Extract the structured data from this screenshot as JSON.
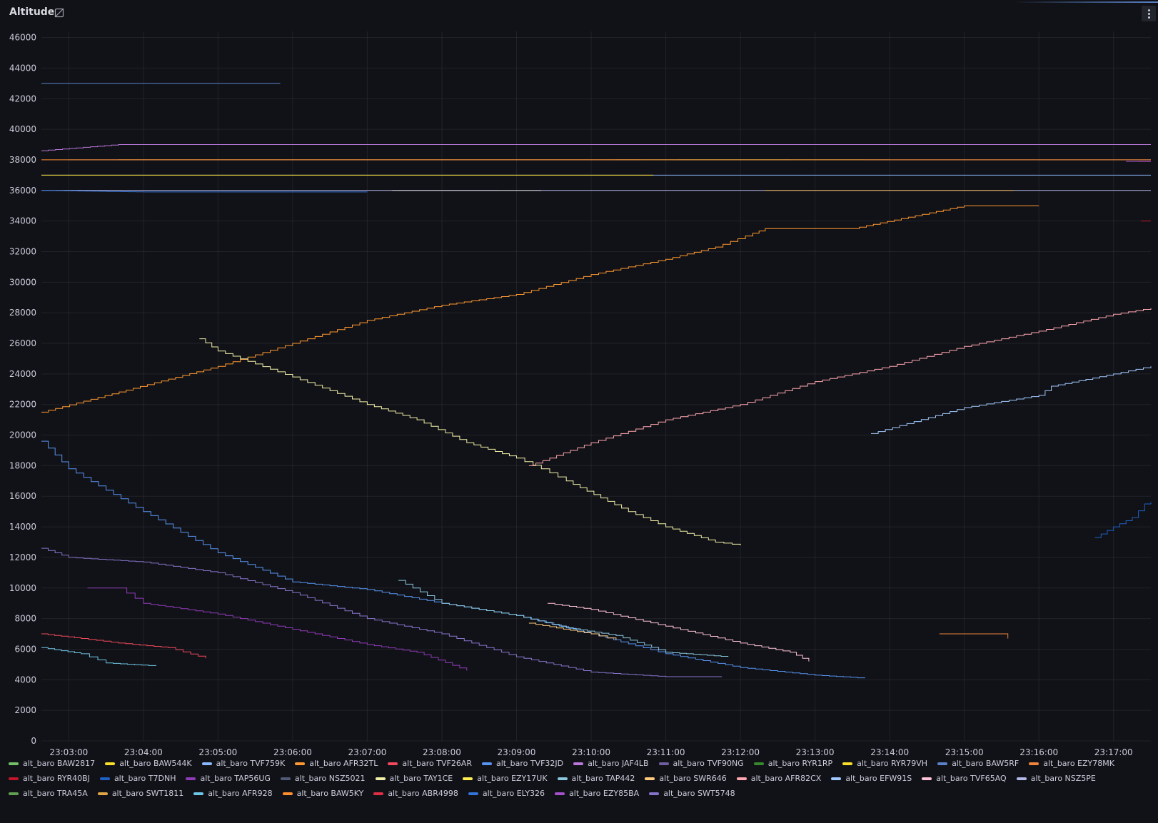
{
  "panel": {
    "title": "Altitude",
    "title_icon": "no-link-icon",
    "menu_icon": "kebab-menu-icon"
  },
  "chart_data": {
    "type": "line",
    "title": "Altitude",
    "ylim": [
      0,
      46000
    ],
    "y_ticks": [
      0,
      2000,
      4000,
      6000,
      8000,
      10000,
      12000,
      14000,
      16000,
      18000,
      20000,
      22000,
      24000,
      26000,
      28000,
      30000,
      32000,
      34000,
      36000,
      38000,
      40000,
      42000,
      44000,
      46000
    ],
    "x_ticks": [
      "23:03:00",
      "23:04:00",
      "23:05:00",
      "23:06:00",
      "23:07:00",
      "23:08:00",
      "23:09:00",
      "23:10:00",
      "23:11:00",
      "23:12:00",
      "23:13:00",
      "23:14:00",
      "23:15:00",
      "23:16:00",
      "23:17:00"
    ],
    "x_range": [
      "23:02:38",
      "23:17:30"
    ],
    "grid": true,
    "legend_placement": "bottom",
    "series": [
      {
        "name": "alt_baro BAW2817",
        "color": "#73bf69",
        "x": [
          "23:10:20",
          "23:13:00",
          "23:14:00"
        ],
        "y": [
          38000,
          38000,
          38000
        ]
      },
      {
        "name": "alt_baro BAW544K",
        "color": "#fade2a",
        "x": [
          "23:03:40",
          "23:04:40",
          "23:10:20",
          "23:10:40"
        ],
        "y": [
          38000,
          38000,
          38000,
          38000
        ]
      },
      {
        "name": "alt_baro TVF759K",
        "color": "#8ab8ff",
        "x": [
          "23:02:38",
          "23:17:30"
        ],
        "y": [
          37000,
          37000
        ]
      },
      {
        "name": "alt_baro AFR32TL",
        "color": "#ff9830",
        "x": [
          "23:02:38",
          "23:05:00",
          "23:06:00",
          "23:07:00",
          "23:08:00",
          "23:09:00",
          "23:10:00",
          "23:11:00",
          "23:11:40",
          "23:12:10",
          "23:12:20",
          "23:13:30",
          "23:15:00",
          "23:16:00"
        ],
        "y": [
          21500,
          24500,
          26000,
          27500,
          28500,
          29200,
          30500,
          31500,
          32300,
          33200,
          33500,
          33500,
          35000,
          35000
        ]
      },
      {
        "name": "alt_baro TVF26AR",
        "color": "#f2495c",
        "x": [
          "23:02:38",
          "23:03:10",
          "23:03:40",
          "23:04:20",
          "23:04:50"
        ],
        "y": [
          7000,
          6700,
          6400,
          6100,
          5400
        ]
      },
      {
        "name": "alt_baro TVF32JD",
        "color": "#5794f2",
        "x": [
          "23:02:38",
          "23:03:00",
          "23:04:00",
          "23:05:00",
          "23:06:00",
          "23:07:00",
          "23:08:00",
          "23:09:00",
          "23:10:00",
          "23:11:00",
          "23:12:00",
          "23:13:00",
          "23:13:40"
        ],
        "y": [
          19600,
          17800,
          15000,
          12300,
          10400,
          9900,
          9000,
          8200,
          7000,
          5700,
          4800,
          4300,
          4100
        ]
      },
      {
        "name": "alt_baro JAF4LB",
        "color": "#b877d9",
        "x": [
          "23:02:38",
          "23:03:40",
          "23:17:30"
        ],
        "y": [
          38600,
          39000,
          39000
        ]
      },
      {
        "name": "alt_baro TVF90NG",
        "color": "#705da0",
        "x": [
          "23:03:00",
          "23:17:30"
        ],
        "y": [
          38000,
          38000
        ]
      },
      {
        "name": "alt_baro RYR1RP",
        "color": "#37872d",
        "x": [
          "23:10:40",
          "23:13:40"
        ],
        "y": [
          38000,
          38000
        ]
      },
      {
        "name": "alt_baro RYR79VH",
        "color": "#fade2a",
        "x": [
          "23:02:38",
          "23:03:50",
          "23:08:00",
          "23:10:50"
        ],
        "y": [
          37000,
          37000,
          37000,
          37000
        ]
      },
      {
        "name": "alt_baro BAW5RF",
        "color": "#5a82c8",
        "x": [
          "23:02:38",
          "23:05:50"
        ],
        "y": [
          43000,
          43000
        ]
      },
      {
        "name": "alt_baro EZY78MK",
        "color": "#ef843c",
        "x": [
          "23:14:40",
          "23:15:30",
          "23:15:35"
        ],
        "y": [
          7000,
          7000,
          6700
        ]
      },
      {
        "name": "alt_baro RYR40BJ",
        "color": "#c4162a",
        "x": [
          "23:17:22",
          "23:17:30"
        ],
        "y": [
          34000,
          34000
        ]
      },
      {
        "name": "alt_baro T7DNH",
        "color": "#1f60c4",
        "x": [
          "23:16:45",
          "23:17:00",
          "23:17:15",
          "23:17:25",
          "23:17:30"
        ],
        "y": [
          13300,
          14000,
          14600,
          15500,
          15600
        ]
      },
      {
        "name": "alt_baro TAP56UG",
        "color": "#8f3bb8",
        "x": [
          "23:03:15",
          "23:03:40",
          "23:04:00",
          "23:05:00",
          "23:06:00",
          "23:07:00",
          "23:07:40",
          "23:08:20"
        ],
        "y": [
          10000,
          10000,
          9000,
          8300,
          7300,
          6300,
          5800,
          4600
        ]
      },
      {
        "name": "alt_baro NSZ5021",
        "color": "#505a78",
        "x": [
          "23:07:25",
          "23:08:45"
        ],
        "y": [
          36000,
          36000
        ]
      },
      {
        "name": "alt_baro TAY1CE",
        "color": "#f2f0a8",
        "x": [
          "23:04:45",
          "23:05:00",
          "23:06:00",
          "23:07:00",
          "23:07:40",
          "23:08:20",
          "23:09:00",
          "23:09:20",
          "23:09:40",
          "23:10:30",
          "23:11:00",
          "23:11:40",
          "23:12:00"
        ],
        "y": [
          26300,
          25500,
          23800,
          22000,
          21000,
          19500,
          18500,
          17800,
          17000,
          15000,
          14000,
          13000,
          12800
        ]
      },
      {
        "name": "alt_baro EZY17UK",
        "color": "#ffee52",
        "x": [
          "23:07:20",
          "23:09:20"
        ],
        "y": [
          36000,
          36000
        ]
      },
      {
        "name": "alt_baro TAP442",
        "color": "#8ac7e0",
        "x": [
          "23:07:25",
          "23:08:00",
          "23:09:00",
          "23:09:40",
          "23:10:20",
          "23:11:00",
          "23:11:50"
        ],
        "y": [
          10500,
          9000,
          8200,
          7400,
          6900,
          5800,
          5500
        ]
      },
      {
        "name": "alt_baro SWR646",
        "color": "#ffcb7d",
        "x": [
          "23:09:10",
          "23:10:00",
          "23:10:20"
        ],
        "y": [
          7700,
          7000,
          6600
        ]
      },
      {
        "name": "alt_baro AFR82CX",
        "color": "#ffa6b0",
        "x": [
          "23:09:10",
          "23:10:00",
          "23:11:00",
          "23:12:00",
          "23:13:00",
          "23:14:00",
          "23:15:00",
          "23:16:00",
          "23:17:00",
          "23:17:30"
        ],
        "y": [
          18000,
          19500,
          21000,
          22000,
          23500,
          24500,
          25800,
          26800,
          27900,
          28300
        ]
      },
      {
        "name": "alt_baro EFW91S",
        "color": "#a2c9ff",
        "x": [
          "23:13:45",
          "23:15:00",
          "23:16:00",
          "23:16:10",
          "23:17:00",
          "23:17:30"
        ],
        "y": [
          20100,
          21800,
          22600,
          23200,
          24000,
          24500
        ]
      },
      {
        "name": "alt_baro TVF65AQ",
        "color": "#ffc2d6",
        "x": [
          "23:09:25",
          "23:10:00",
          "23:11:00",
          "23:12:00",
          "23:12:40",
          "23:12:55"
        ],
        "y": [
          9000,
          8600,
          7500,
          6400,
          5800,
          5200
        ]
      },
      {
        "name": "alt_baro NSZ5PE",
        "color": "#b4b8e8",
        "x": [
          "23:02:38",
          "23:17:30"
        ],
        "y": [
          36000,
          36000
        ]
      },
      {
        "name": "alt_baro TRA45A",
        "color": "#629e51",
        "x": [
          "23:11:10",
          "23:12:40"
        ],
        "y": [
          38000,
          38000
        ]
      },
      {
        "name": "alt_baro SWT1811",
        "color": "#e0a546",
        "x": [
          "23:12:20",
          "23:15:40"
        ],
        "y": [
          36000,
          36000
        ]
      },
      {
        "name": "alt_baro AFR928",
        "color": "#6ec6e6",
        "x": [
          "23:02:38",
          "23:03:10",
          "23:03:30",
          "23:04:10"
        ],
        "y": [
          6100,
          5700,
          5100,
          4900
        ]
      },
      {
        "name": "alt_baro BAW5KY",
        "color": "#ff8f2e",
        "x": [
          "23:02:38",
          "23:17:30"
        ],
        "y": [
          38000,
          38000
        ]
      },
      {
        "name": "alt_baro ABR4998",
        "color": "#e02f44",
        "x": [
          "23:17:20",
          "23:17:30"
        ],
        "y": [
          37900,
          37900
        ]
      },
      {
        "name": "alt_baro ELY326",
        "color": "#3274d9",
        "x": [
          "23:02:38",
          "23:04:00",
          "23:07:00"
        ],
        "y": [
          36000,
          35900,
          35900
        ]
      },
      {
        "name": "alt_baro EZY85BA",
        "color": "#a352cc",
        "x": [
          "23:17:10",
          "23:17:30"
        ],
        "y": [
          37900,
          37900
        ]
      },
      {
        "name": "alt_baro SWT5748",
        "color": "#8674cc",
        "x": [
          "23:02:38",
          "23:03:00",
          "23:04:00",
          "23:05:00",
          "23:06:00",
          "23:07:00",
          "23:08:00",
          "23:09:00",
          "23:10:00",
          "23:11:00",
          "23:11:45"
        ],
        "y": [
          12600,
          12000,
          11700,
          11000,
          9700,
          8000,
          7000,
          5500,
          4500,
          4200,
          4200
        ]
      }
    ]
  }
}
